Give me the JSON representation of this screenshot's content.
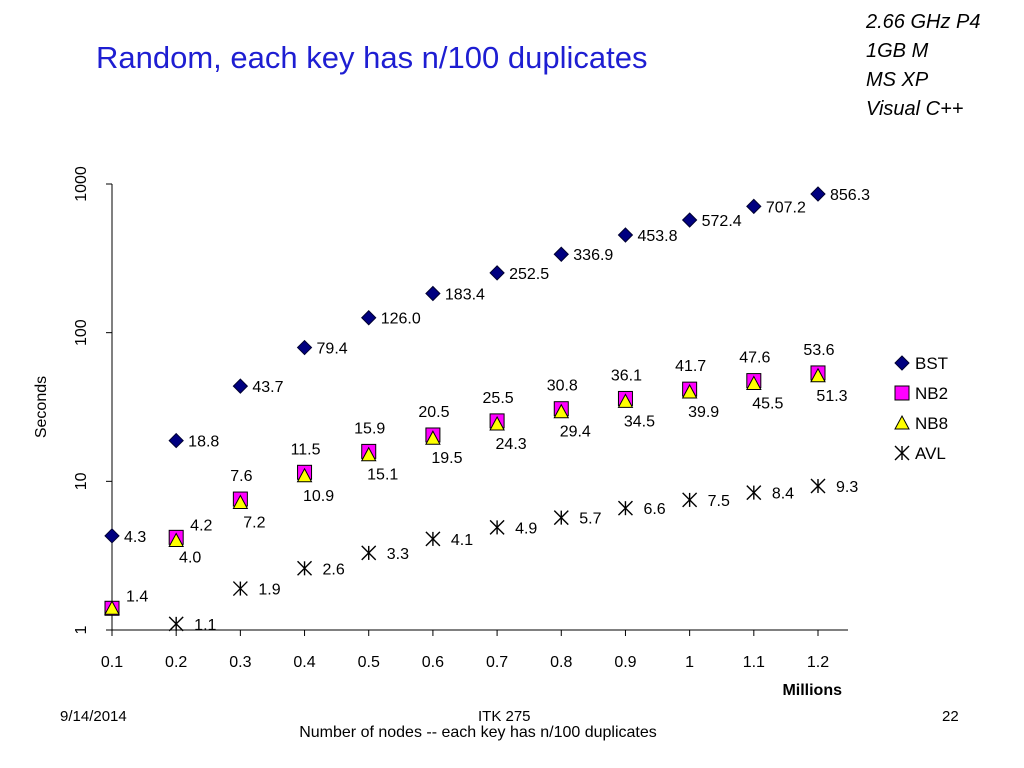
{
  "slide": {
    "title": "Random, each key has n/100 duplicates",
    "specs": [
      "2.66 GHz P4",
      "1GB M",
      "MS XP",
      "Visual C++"
    ],
    "footer": {
      "date": "9/14/2014",
      "course": "ITK 275",
      "page": "22"
    }
  },
  "chart_data": {
    "type": "scatter",
    "title": "",
    "xlabel": "Number of nodes -- each key has n/100 duplicates",
    "xunit": "Millions",
    "ylabel": "Seconds",
    "yscale": "log",
    "ylim": [
      1,
      1000
    ],
    "xlim": [
      0.1,
      1.2
    ],
    "x": [
      0.1,
      0.2,
      0.3,
      0.4,
      0.5,
      0.6,
      0.7,
      0.8,
      0.9,
      1,
      1.1,
      1.2
    ],
    "xtick_labels": [
      "0.1",
      "0.2",
      "0.3",
      "0.4",
      "0.5",
      "0.6",
      "0.7",
      "0.8",
      "0.9",
      "1",
      "1.1",
      "1.2"
    ],
    "yticks": [
      1,
      10,
      100,
      1000
    ],
    "ytick_labels": [
      "1",
      "10",
      "100",
      "1000"
    ],
    "grid": false,
    "legend": "right",
    "series": [
      {
        "name": "BST",
        "marker": "diamond",
        "color": "#000080",
        "x": [
          0.1,
          0.2,
          0.3,
          0.4,
          0.5,
          0.6,
          0.7,
          0.8,
          0.9,
          1,
          1.1,
          1.2
        ],
        "values": [
          4.3,
          18.8,
          43.7,
          79.4,
          126.0,
          183.4,
          252.5,
          336.9,
          453.8,
          572.4,
          707.2,
          856.3
        ],
        "labels": [
          "4.3",
          "18.8",
          "43.7",
          "79.4",
          "126.0",
          "183.4",
          "252.5",
          "336.9",
          "453.8",
          "572.4",
          "707.2",
          "856.3"
        ]
      },
      {
        "name": "NB2",
        "marker": "square",
        "color": "#ff00ff",
        "x": [
          0.1,
          0.2,
          0.3,
          0.4,
          0.5,
          0.6,
          0.7,
          0.8,
          0.9,
          1,
          1.1,
          1.2
        ],
        "values": [
          1.4,
          4.2,
          7.6,
          11.5,
          15.9,
          20.5,
          25.5,
          30.8,
          36.1,
          41.7,
          47.6,
          53.6
        ],
        "labels": [
          "1.4",
          "4.2",
          "7.6",
          "11.5",
          "15.9",
          "20.5",
          "25.5",
          "30.8",
          "36.1",
          "41.7",
          "47.6",
          "53.6"
        ]
      },
      {
        "name": "NB8",
        "marker": "triangle",
        "color": "#ffff00",
        "x": [
          0.1,
          0.2,
          0.3,
          0.4,
          0.5,
          0.6,
          0.7,
          0.8,
          0.9,
          1,
          1.1,
          1.2
        ],
        "values": [
          1.4,
          4.0,
          7.2,
          10.9,
          15.1,
          19.5,
          24.3,
          29.4,
          34.5,
          39.9,
          45.5,
          51.3
        ],
        "labels": [
          "",
          "4.0",
          "7.2",
          "10.9",
          "15.1",
          "19.5",
          "24.3",
          "29.4",
          "34.5",
          "39.9",
          "45.5",
          "51.3"
        ]
      },
      {
        "name": "AVL",
        "marker": "star",
        "color": "#000000",
        "x": [
          0.2,
          0.3,
          0.4,
          0.5,
          0.6,
          0.7,
          0.8,
          0.9,
          1,
          1.1,
          1.2
        ],
        "values": [
          1.1,
          1.9,
          2.6,
          3.3,
          4.1,
          4.9,
          5.7,
          6.6,
          7.5,
          8.4,
          9.3
        ],
        "labels": [
          "1.1",
          "1.9",
          "2.6",
          "3.3",
          "4.1",
          "4.9",
          "5.7",
          "6.6",
          "7.5",
          "8.4",
          "9.3"
        ]
      }
    ]
  }
}
